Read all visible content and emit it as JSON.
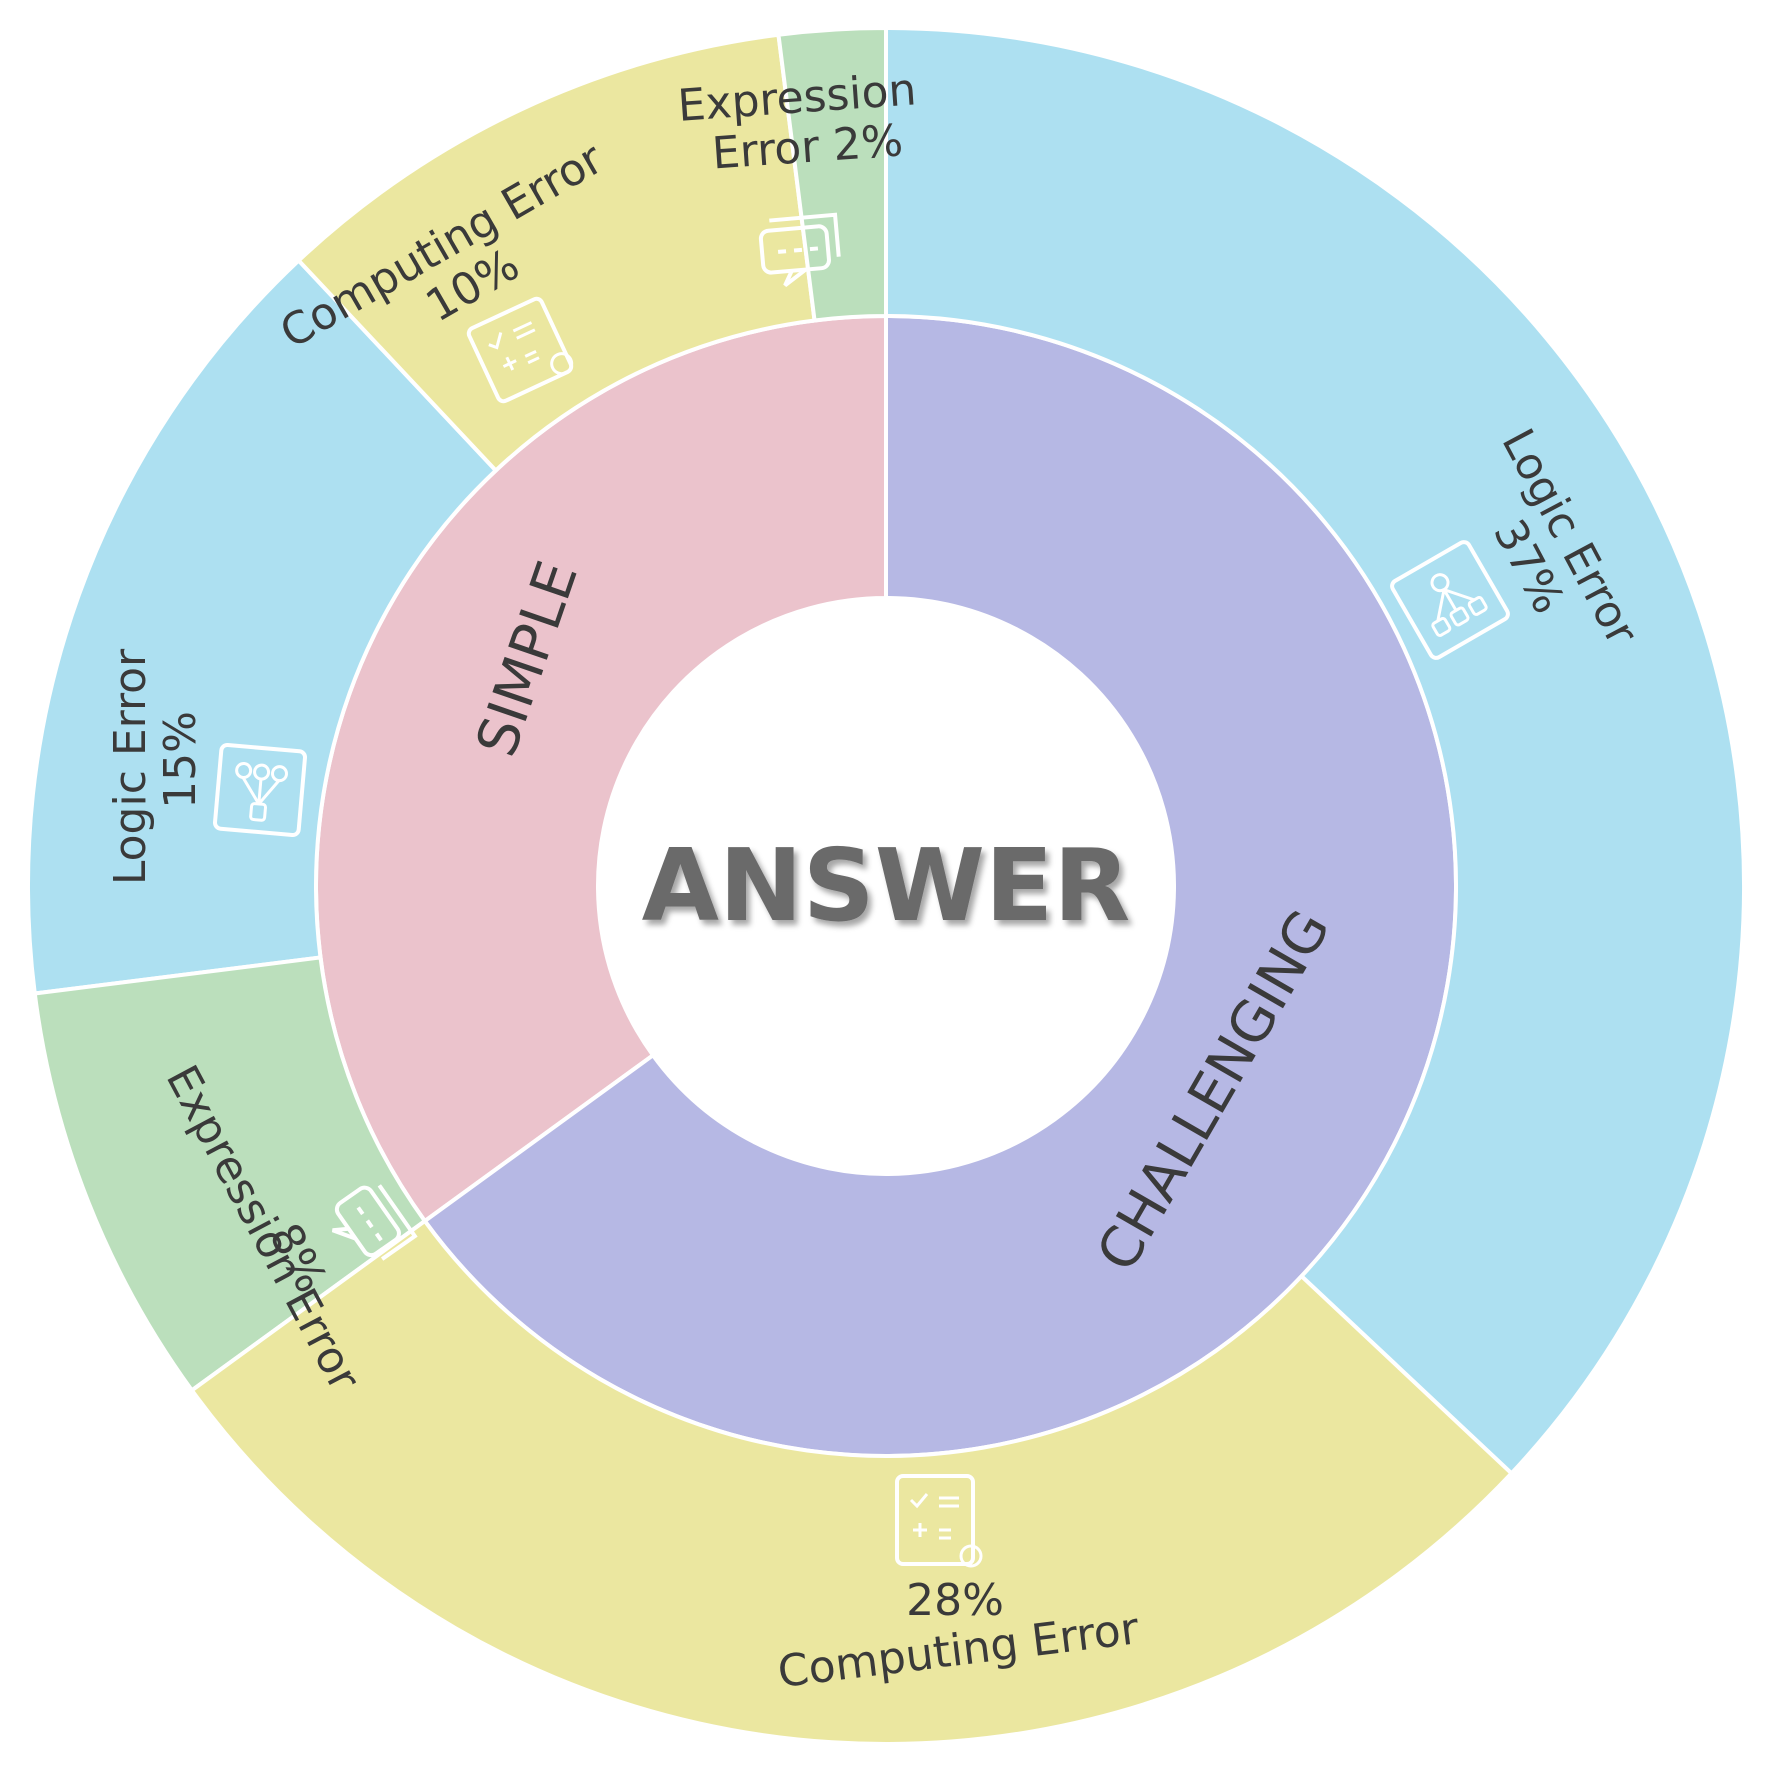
{
  "chart_data": {
    "type": "sunburst",
    "center_label": "ANSWER",
    "inner": [
      {
        "name": "SIMPLE",
        "value": 35,
        "color": "#ebc3cc"
      },
      {
        "name": "CHALLENGING",
        "value": 65,
        "color": "#b6b8e4"
      }
    ],
    "outer": [
      {
        "parent": "SIMPLE",
        "name": "Logic Error",
        "value": 15,
        "label": "15%",
        "color": "#ade0f1",
        "icon": "flowchart-icon"
      },
      {
        "parent": "SIMPLE",
        "name": "Computing Error",
        "value": 10,
        "label": "10%",
        "color": "#ebe7a0",
        "icon": "calculator-icon"
      },
      {
        "parent": "SIMPLE",
        "name": "Expression Error",
        "value": 2,
        "label": "2%",
        "color": "#bbdfbc",
        "icon": "chat-bubble-icon"
      },
      {
        "parent": "SIMPLE",
        "name": "Expression Error",
        "value": 8,
        "label": "8%",
        "color": "#bbdfbc",
        "icon": "chat-bubble-icon"
      },
      {
        "parent": "CHALLENGING",
        "name": "Logic Error",
        "value": 37,
        "label": "37%",
        "color": "#ade0f1",
        "icon": "flowchart-icon"
      },
      {
        "parent": "CHALLENGING",
        "name": "Computing Error",
        "value": 28,
        "label": "28%",
        "color": "#ebe7a0",
        "icon": "calculator-icon"
      }
    ]
  }
}
